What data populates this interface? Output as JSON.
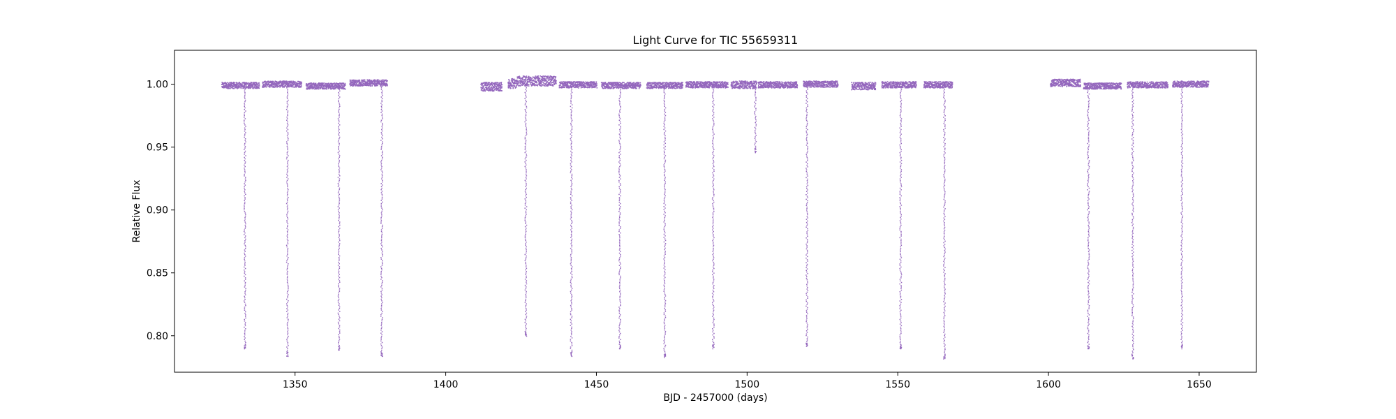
{
  "chart_data": {
    "type": "scatter",
    "title": "Light Curve for TIC 55659311",
    "xlabel": "BJD - 2457000 (days)",
    "ylabel": "Relative Flux",
    "xlim": [
      1310,
      1669
    ],
    "ylim": [
      0.771,
      1.027
    ],
    "x_ticks": [
      1350,
      1400,
      1450,
      1500,
      1550,
      1600,
      1650
    ],
    "y_ticks": [
      0.8,
      0.85,
      0.9,
      0.95,
      1.0
    ],
    "x_tick_labels": [
      "1350",
      "1400",
      "1450",
      "1500",
      "1550",
      "1600",
      "1650"
    ],
    "y_tick_labels": [
      "0.80",
      "0.85",
      "0.90",
      "0.95",
      "1.00"
    ],
    "grid": false,
    "marker_color": "#9467bd",
    "baseline_segments": [
      {
        "x0": 1325.5,
        "x1": 1338.0,
        "y": 0.9995,
        "spread": 0.0025
      },
      {
        "x0": 1339.0,
        "x1": 1352.0,
        "y": 1.0005,
        "spread": 0.0025
      },
      {
        "x0": 1353.5,
        "x1": 1366.5,
        "y": 0.999,
        "spread": 0.0025
      },
      {
        "x0": 1368.0,
        "x1": 1380.5,
        "y": 1.0015,
        "spread": 0.0025
      },
      {
        "x0": 1411.5,
        "x1": 1418.5,
        "y": 0.9985,
        "spread": 0.0035
      },
      {
        "x0": 1420.5,
        "x1": 1423.5,
        "y": 1.001,
        "spread": 0.004
      },
      {
        "x0": 1423.5,
        "x1": 1436.5,
        "y": 1.003,
        "spread": 0.004
      },
      {
        "x0": 1437.5,
        "x1": 1450.0,
        "y": 1.0,
        "spread": 0.0025
      },
      {
        "x0": 1451.5,
        "x1": 1464.5,
        "y": 0.9995,
        "spread": 0.0025
      },
      {
        "x0": 1466.5,
        "x1": 1478.5,
        "y": 0.9995,
        "spread": 0.0025
      },
      {
        "x0": 1479.5,
        "x1": 1493.5,
        "y": 1.0,
        "spread": 0.0025
      },
      {
        "x0": 1494.5,
        "x1": 1503.0,
        "y": 1.0,
        "spread": 0.003
      },
      {
        "x0": 1503.5,
        "x1": 1516.5,
        "y": 1.0,
        "spread": 0.0025
      },
      {
        "x0": 1518.5,
        "x1": 1530.0,
        "y": 1.0005,
        "spread": 0.0025
      },
      {
        "x0": 1534.5,
        "x1": 1542.5,
        "y": 0.999,
        "spread": 0.003
      },
      {
        "x0": 1544.5,
        "x1": 1556.0,
        "y": 1.0,
        "spread": 0.0025
      },
      {
        "x0": 1558.5,
        "x1": 1568.0,
        "y": 1.0,
        "spread": 0.0025
      },
      {
        "x0": 1600.5,
        "x1": 1610.5,
        "y": 1.0015,
        "spread": 0.003
      },
      {
        "x0": 1611.5,
        "x1": 1624.0,
        "y": 0.999,
        "spread": 0.0025
      },
      {
        "x0": 1626.0,
        "x1": 1639.5,
        "y": 1.0,
        "spread": 0.0025
      },
      {
        "x0": 1641.0,
        "x1": 1653.0,
        "y": 1.0005,
        "spread": 0.0025
      }
    ],
    "transits": [
      {
        "x": 1333.2,
        "depth_y": 0.79
      },
      {
        "x": 1347.3,
        "depth_y": 0.784
      },
      {
        "x": 1364.4,
        "depth_y": 0.789
      },
      {
        "x": 1378.6,
        "depth_y": 0.784
      },
      {
        "x": 1426.4,
        "depth_y": 0.8
      },
      {
        "x": 1441.5,
        "depth_y": 0.784
      },
      {
        "x": 1457.6,
        "depth_y": 0.79
      },
      {
        "x": 1472.5,
        "depth_y": 0.783
      },
      {
        "x": 1488.6,
        "depth_y": 0.79
      },
      {
        "x": 1502.6,
        "depth_y": 0.946
      },
      {
        "x": 1519.7,
        "depth_y": 0.792
      },
      {
        "x": 1550.8,
        "depth_y": 0.79
      },
      {
        "x": 1565.3,
        "depth_y": 0.782
      },
      {
        "x": 1613.1,
        "depth_y": 0.79
      },
      {
        "x": 1627.8,
        "depth_y": 0.782
      },
      {
        "x": 1644.1,
        "depth_y": 0.79
      }
    ]
  }
}
